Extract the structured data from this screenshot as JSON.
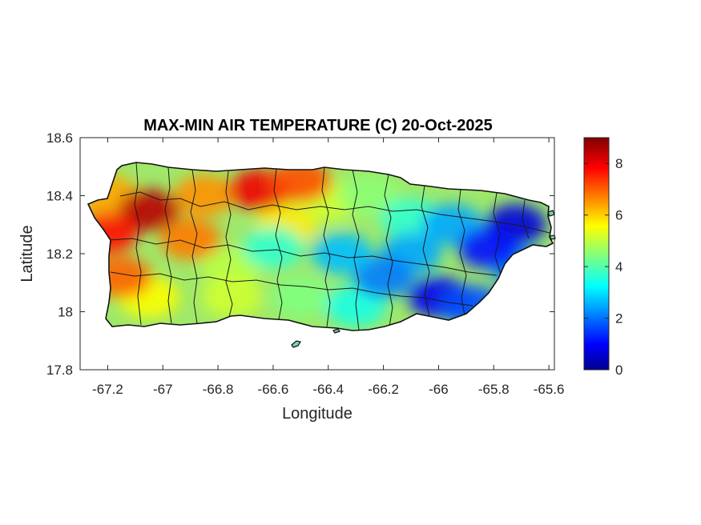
{
  "chart_data": {
    "type": "heatmap",
    "title": "MAX-MIN AIR TEMPERATURE (C) 20-Oct-2025",
    "xlabel": "Longitude",
    "ylabel": "Latitude",
    "xlim": [
      -67.3,
      -65.58
    ],
    "ylim": [
      17.8,
      18.6
    ],
    "x_ticks": [
      -67.2,
      -67,
      -66.8,
      -66.6,
      -66.4,
      -66.2,
      -66,
      -65.8,
      -65.6
    ],
    "x_tick_labels": [
      "-67.2",
      "-67",
      "-66.8",
      "-66.6",
      "-66.4",
      "-66.2",
      "-66",
      "-65.8",
      "-65.6"
    ],
    "y_ticks": [
      17.8,
      18,
      18.2,
      18.4,
      18.6
    ],
    "y_tick_labels": [
      "17.8",
      "18",
      "18.2",
      "18.4",
      "18.6"
    ],
    "colorbar": {
      "colormap": "jet",
      "range": [
        0,
        9
      ],
      "ticks": [
        0,
        2,
        4,
        6,
        8
      ],
      "tick_labels": [
        "0",
        "2",
        "4",
        "6",
        "8"
      ]
    },
    "grid": false,
    "hotspots": [
      {
        "lon": -67.05,
        "lat": 18.35,
        "value": 8.5
      },
      {
        "lon": -67.2,
        "lat": 18.27,
        "value": 7.8
      },
      {
        "lon": -66.65,
        "lat": 18.42,
        "value": 8.0
      },
      {
        "lon": -66.5,
        "lat": 18.45,
        "value": 7.2
      },
      {
        "lon": -67.15,
        "lat": 18.12,
        "value": 7.0
      },
      {
        "lon": -66.9,
        "lat": 18.25,
        "value": 6.8
      }
    ],
    "coldspots": [
      {
        "lon": -65.72,
        "lat": 18.3,
        "value": 0.8
      },
      {
        "lon": -65.82,
        "lat": 18.22,
        "value": 1.2
      },
      {
        "lon": -66.0,
        "lat": 18.05,
        "value": 1.0
      },
      {
        "lon": -65.88,
        "lat": 18.02,
        "value": 1.8
      },
      {
        "lon": -66.2,
        "lat": 18.12,
        "value": 2.2
      },
      {
        "lon": -66.35,
        "lat": 18.2,
        "value": 2.8
      }
    ]
  }
}
